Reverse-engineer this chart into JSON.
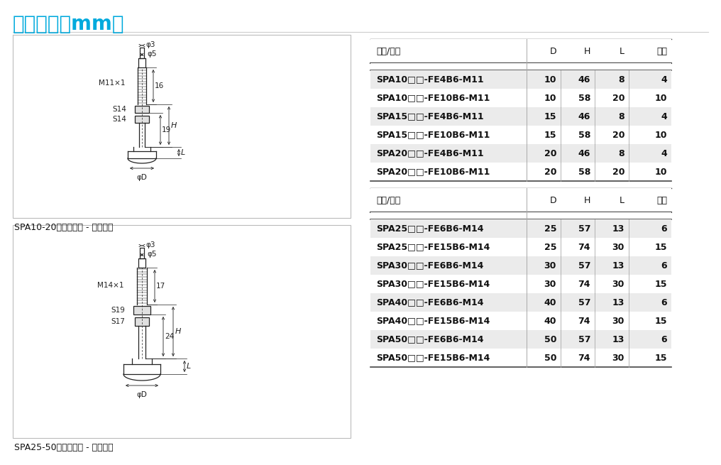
{
  "title": "尺寸规格（mm）",
  "title_color": "#00aadd",
  "bg_color": "#ffffff",
  "table1_header": [
    "型号/尺寸",
    "D",
    "H",
    "L",
    "行程"
  ],
  "table1_rows": [
    [
      "SPA10□□-FE4B6-M11",
      "10",
      "46",
      "8",
      "4"
    ],
    [
      "SPA10□□-FE10B6-M11",
      "10",
      "58",
      "20",
      "10"
    ],
    [
      "SPA15□□-FE4B6-M11",
      "15",
      "46",
      "8",
      "4"
    ],
    [
      "SPA15□□-FE10B6-M11",
      "15",
      "58",
      "20",
      "10"
    ],
    [
      "SPA20□□-FE4B6-M11",
      "20",
      "46",
      "8",
      "4"
    ],
    [
      "SPA20□□-FE10B6-M11",
      "20",
      "58",
      "20",
      "10"
    ]
  ],
  "table2_header": [
    "型号/尺寸",
    "D",
    "H",
    "L",
    "行程"
  ],
  "table2_rows": [
    [
      "SPA25□□-FE6B6-M14",
      "25",
      "57",
      "13",
      "6"
    ],
    [
      "SPA25□□-FE15B6-M14",
      "25",
      "74",
      "30",
      "15"
    ],
    [
      "SPA30□□-FE6B6-M14",
      "30",
      "57",
      "13",
      "6"
    ],
    [
      "SPA30□□-FE15B6-M14",
      "30",
      "74",
      "30",
      "15"
    ],
    [
      "SPA40□□-FE6B6-M14",
      "40",
      "57",
      "13",
      "6"
    ],
    [
      "SPA40□□-FE15B6-M14",
      "40",
      "74",
      "30",
      "15"
    ],
    [
      "SPA50□□-FE6B6-M14",
      "50",
      "57",
      "13",
      "6"
    ],
    [
      "SPA50□□-FE15B6-M14",
      "50",
      "74",
      "30",
      "15"
    ]
  ],
  "caption1": "SPA10-20　垂直方向 - 宝塔接头",
  "caption2": "SPA25-50　垂直方向 - 宝塔接头",
  "header_bg": "#ffffff",
  "row_bg_odd": "#ebebeb",
  "row_bg_even": "#ffffff",
  "border_color": "#aaaaaa",
  "header_border_color": "#444444",
  "text_color": "#111111",
  "diagram_col": "#222222"
}
